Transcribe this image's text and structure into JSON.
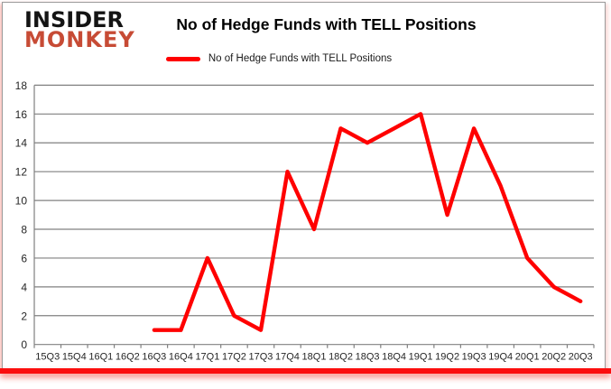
{
  "widget": {
    "logo_line1": "INSIDER",
    "logo_line2": "MONKEY",
    "title": "No of Hedge Funds with TELL Positions",
    "legend_label": "No of Hedge Funds with TELL Positions"
  },
  "colors": {
    "line": "#ff0000",
    "grid": "#808080",
    "axis": "#808080",
    "tick_label": "#262626",
    "title": "#000000",
    "logo_black": "#141414",
    "logo_red": "#c74b35",
    "bottom_bar_red": "#fb0e0e"
  },
  "chart_data": {
    "type": "line",
    "title": "No of Hedge Funds with TELL Positions",
    "legend": [
      "No of Hedge Funds with TELL Positions"
    ],
    "legend_position": "top",
    "grid": true,
    "categories": [
      "15Q3",
      "15Q4",
      "16Q1",
      "16Q2",
      "16Q3",
      "16Q4",
      "17Q1",
      "17Q2",
      "17Q3",
      "17Q4",
      "18Q1",
      "18Q2",
      "18Q3",
      "18Q4",
      "19Q1",
      "19Q2",
      "19Q3",
      "19Q4",
      "20Q1",
      "20Q2",
      "20Q3"
    ],
    "series": [
      {
        "name": "No of Hedge Funds with TELL Positions",
        "values": [
          null,
          null,
          null,
          null,
          1,
          1,
          6,
          2,
          1,
          12,
          8,
          15,
          14,
          15,
          16,
          9,
          15,
          11,
          6,
          4,
          3
        ]
      }
    ],
    "ylim": [
      0,
      18
    ],
    "y_ticks": [
      0,
      2,
      4,
      6,
      8,
      10,
      12,
      14,
      16,
      18
    ]
  }
}
